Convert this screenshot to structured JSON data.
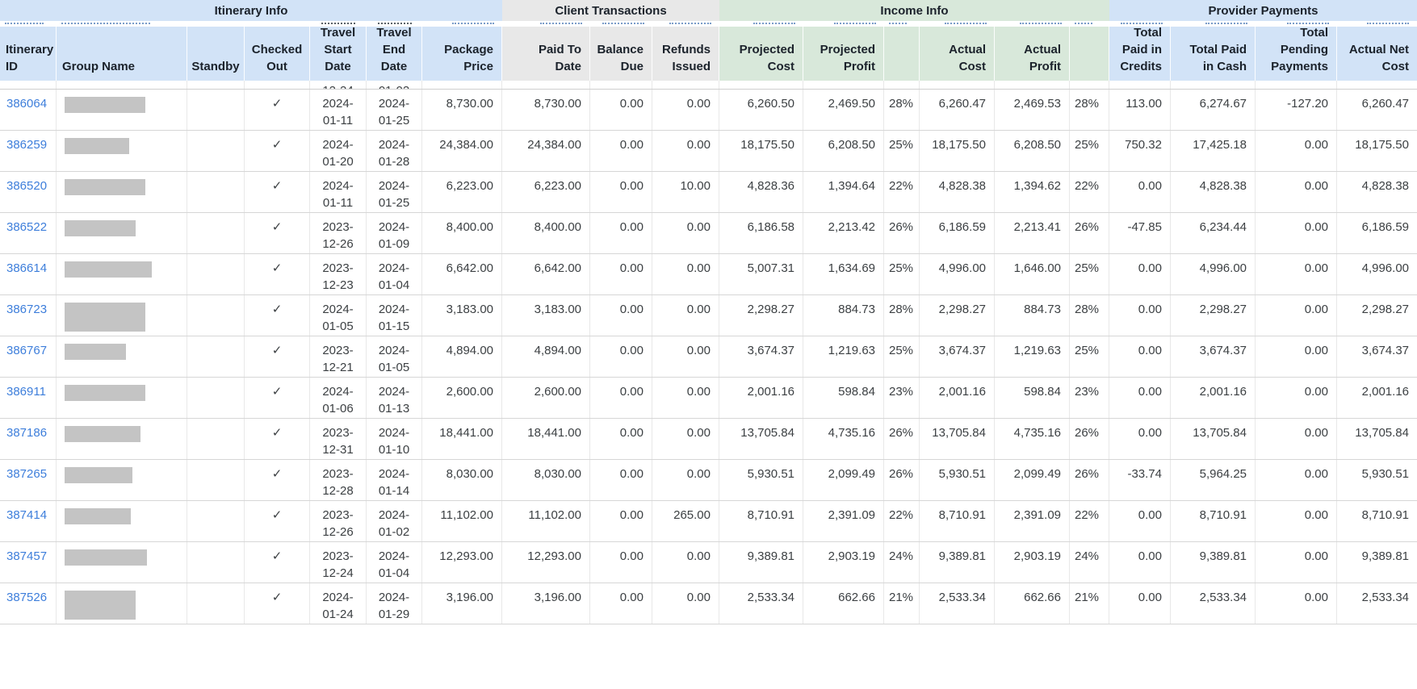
{
  "table": {
    "groups": [
      {
        "label": "Itinerary Info"
      },
      {
        "label": "Client Transactions"
      },
      {
        "label": "Income Info"
      },
      {
        "label": "Provider Payments"
      }
    ],
    "column_labels": {
      "id": "Itinerary ID",
      "group": "Group Name",
      "standby": "Standby",
      "checked_out": "Checked Out",
      "travel_start": "Travel Start Date",
      "travel_end": "Travel End Date",
      "package_price": "Package Price",
      "paid_to_date": "Paid To Date",
      "balance_due": "Balance Due",
      "refunds_issued": "Refunds Issued",
      "projected_cost": "Projected Cost",
      "projected_profit": "Projected Profit",
      "projected_margin": "",
      "actual_cost": "Actual Cost",
      "actual_profit": "Actual Profit",
      "actual_margin": "",
      "credits": "Total Paid in Credits",
      "cash": "Total Paid in Cash",
      "pending": "Total Pending Payments",
      "net": "Actual Net Cost"
    },
    "colors": {
      "blue": "#d2e3f7",
      "gray": "#e8e8e8",
      "green": "#d8e8da",
      "link": "#3d7edb",
      "redaction": "#c4c4c4",
      "header_text": "#1b222b",
      "cell_text": "#3c4043"
    },
    "checkmark": "✓",
    "clipped_row": {
      "travel_start_fragment": "12-24",
      "travel_end_fragment": "01-02"
    },
    "rows": [
      {
        "id": "386064",
        "group_redacted": true,
        "standby": "",
        "checked_out": true,
        "travel_start": "2024-01-11",
        "travel_end": "2024-01-25",
        "package_price": "8,730.00",
        "paid_to_date": "8,730.00",
        "balance_due": "0.00",
        "refunds_issued": "0.00",
        "projected_cost": "6,260.50",
        "projected_profit": "2,469.50",
        "projected_margin": "28%",
        "actual_cost": "6,260.47",
        "actual_profit": "2,469.53",
        "actual_margin": "28%",
        "credits": "113.00",
        "cash": "6,274.67",
        "pending": "-127.20",
        "net": "6,260.47"
      },
      {
        "id": "386259",
        "group_redacted": true,
        "standby": "",
        "checked_out": true,
        "travel_start": "2024-01-20",
        "travel_end": "2024-01-28",
        "package_price": "24,384.00",
        "paid_to_date": "24,384.00",
        "balance_due": "0.00",
        "refunds_issued": "0.00",
        "projected_cost": "18,175.50",
        "projected_profit": "6,208.50",
        "projected_margin": "25%",
        "actual_cost": "18,175.50",
        "actual_profit": "6,208.50",
        "actual_margin": "25%",
        "credits": "750.32",
        "cash": "17,425.18",
        "pending": "0.00",
        "net": "18,175.50"
      },
      {
        "id": "386520",
        "group_redacted": true,
        "standby": "",
        "checked_out": true,
        "travel_start": "2024-01-11",
        "travel_end": "2024-01-25",
        "package_price": "6,223.00",
        "paid_to_date": "6,223.00",
        "balance_due": "0.00",
        "refunds_issued": "10.00",
        "projected_cost": "4,828.36",
        "projected_profit": "1,394.64",
        "projected_margin": "22%",
        "actual_cost": "4,828.38",
        "actual_profit": "1,394.62",
        "actual_margin": "22%",
        "credits": "0.00",
        "cash": "4,828.38",
        "pending": "0.00",
        "net": "4,828.38"
      },
      {
        "id": "386522",
        "group_redacted": true,
        "standby": "",
        "checked_out": true,
        "travel_start": "2023-12-26",
        "travel_end": "2024-01-09",
        "package_price": "8,400.00",
        "paid_to_date": "8,400.00",
        "balance_due": "0.00",
        "refunds_issued": "0.00",
        "projected_cost": "6,186.58",
        "projected_profit": "2,213.42",
        "projected_margin": "26%",
        "actual_cost": "6,186.59",
        "actual_profit": "2,213.41",
        "actual_margin": "26%",
        "credits": "-47.85",
        "cash": "6,234.44",
        "pending": "0.00",
        "net": "6,186.59"
      },
      {
        "id": "386614",
        "group_redacted": true,
        "standby": "",
        "checked_out": true,
        "travel_start": "2023-12-23",
        "travel_end": "2024-01-04",
        "package_price": "6,642.00",
        "paid_to_date": "6,642.00",
        "balance_due": "0.00",
        "refunds_issued": "0.00",
        "projected_cost": "5,007.31",
        "projected_profit": "1,634.69",
        "projected_margin": "25%",
        "actual_cost": "4,996.00",
        "actual_profit": "1,646.00",
        "actual_margin": "25%",
        "credits": "0.00",
        "cash": "4,996.00",
        "pending": "0.00",
        "net": "4,996.00"
      },
      {
        "id": "386723",
        "group_redacted": true,
        "standby": "",
        "checked_out": true,
        "travel_start": "2024-01-05",
        "travel_end": "2024-01-15",
        "package_price": "3,183.00",
        "paid_to_date": "3,183.00",
        "balance_due": "0.00",
        "refunds_issued": "0.00",
        "projected_cost": "2,298.27",
        "projected_profit": "884.73",
        "projected_margin": "28%",
        "actual_cost": "2,298.27",
        "actual_profit": "884.73",
        "actual_margin": "28%",
        "credits": "0.00",
        "cash": "2,298.27",
        "pending": "0.00",
        "net": "2,298.27"
      },
      {
        "id": "386767",
        "group_redacted": true,
        "standby": "",
        "checked_out": true,
        "travel_start": "2023-12-21",
        "travel_end": "2024-01-05",
        "package_price": "4,894.00",
        "paid_to_date": "4,894.00",
        "balance_due": "0.00",
        "refunds_issued": "0.00",
        "projected_cost": "3,674.37",
        "projected_profit": "1,219.63",
        "projected_margin": "25%",
        "actual_cost": "3,674.37",
        "actual_profit": "1,219.63",
        "actual_margin": "25%",
        "credits": "0.00",
        "cash": "3,674.37",
        "pending": "0.00",
        "net": "3,674.37"
      },
      {
        "id": "386911",
        "group_redacted": true,
        "standby": "",
        "checked_out": true,
        "travel_start": "2024-01-06",
        "travel_end": "2024-01-13",
        "package_price": "2,600.00",
        "paid_to_date": "2,600.00",
        "balance_due": "0.00",
        "refunds_issued": "0.00",
        "projected_cost": "2,001.16",
        "projected_profit": "598.84",
        "projected_margin": "23%",
        "actual_cost": "2,001.16",
        "actual_profit": "598.84",
        "actual_margin": "23%",
        "credits": "0.00",
        "cash": "2,001.16",
        "pending": "0.00",
        "net": "2,001.16"
      },
      {
        "id": "387186",
        "group_redacted": true,
        "standby": "",
        "checked_out": true,
        "travel_start": "2023-12-31",
        "travel_end": "2024-01-10",
        "package_price": "18,441.00",
        "paid_to_date": "18,441.00",
        "balance_due": "0.00",
        "refunds_issued": "0.00",
        "projected_cost": "13,705.84",
        "projected_profit": "4,735.16",
        "projected_margin": "26%",
        "actual_cost": "13,705.84",
        "actual_profit": "4,735.16",
        "actual_margin": "26%",
        "credits": "0.00",
        "cash": "13,705.84",
        "pending": "0.00",
        "net": "13,705.84"
      },
      {
        "id": "387265",
        "group_redacted": true,
        "standby": "",
        "checked_out": true,
        "travel_start": "2023-12-28",
        "travel_end": "2024-01-14",
        "package_price": "8,030.00",
        "paid_to_date": "8,030.00",
        "balance_due": "0.00",
        "refunds_issued": "0.00",
        "projected_cost": "5,930.51",
        "projected_profit": "2,099.49",
        "projected_margin": "26%",
        "actual_cost": "5,930.51",
        "actual_profit": "2,099.49",
        "actual_margin": "26%",
        "credits": "-33.74",
        "cash": "5,964.25",
        "pending": "0.00",
        "net": "5,930.51"
      },
      {
        "id": "387414",
        "group_redacted": true,
        "standby": "",
        "checked_out": true,
        "travel_start": "2023-12-26",
        "travel_end": "2024-01-02",
        "package_price": "11,102.00",
        "paid_to_date": "11,102.00",
        "balance_due": "0.00",
        "refunds_issued": "265.00",
        "projected_cost": "8,710.91",
        "projected_profit": "2,391.09",
        "projected_margin": "22%",
        "actual_cost": "8,710.91",
        "actual_profit": "2,391.09",
        "actual_margin": "22%",
        "credits": "0.00",
        "cash": "8,710.91",
        "pending": "0.00",
        "net": "8,710.91"
      },
      {
        "id": "387457",
        "group_redacted": true,
        "standby": "",
        "checked_out": true,
        "travel_start": "2023-12-24",
        "travel_end": "2024-01-04",
        "package_price": "12,293.00",
        "paid_to_date": "12,293.00",
        "balance_due": "0.00",
        "refunds_issued": "0.00",
        "projected_cost": "9,389.81",
        "projected_profit": "2,903.19",
        "projected_margin": "24%",
        "actual_cost": "9,389.81",
        "actual_profit": "2,903.19",
        "actual_margin": "24%",
        "credits": "0.00",
        "cash": "9,389.81",
        "pending": "0.00",
        "net": "9,389.81"
      },
      {
        "id": "387526",
        "group_redacted": true,
        "standby": "",
        "checked_out": true,
        "travel_start": "2024-01-24",
        "travel_end": "2024-01-29",
        "package_price": "3,196.00",
        "paid_to_date": "3,196.00",
        "balance_due": "0.00",
        "refunds_issued": "0.00",
        "projected_cost": "2,533.34",
        "projected_profit": "662.66",
        "projected_margin": "21%",
        "actual_cost": "2,533.34",
        "actual_profit": "662.66",
        "actual_margin": "21%",
        "credits": "0.00",
        "cash": "2,533.34",
        "pending": "0.00",
        "net": "2,533.34"
      }
    ]
  }
}
